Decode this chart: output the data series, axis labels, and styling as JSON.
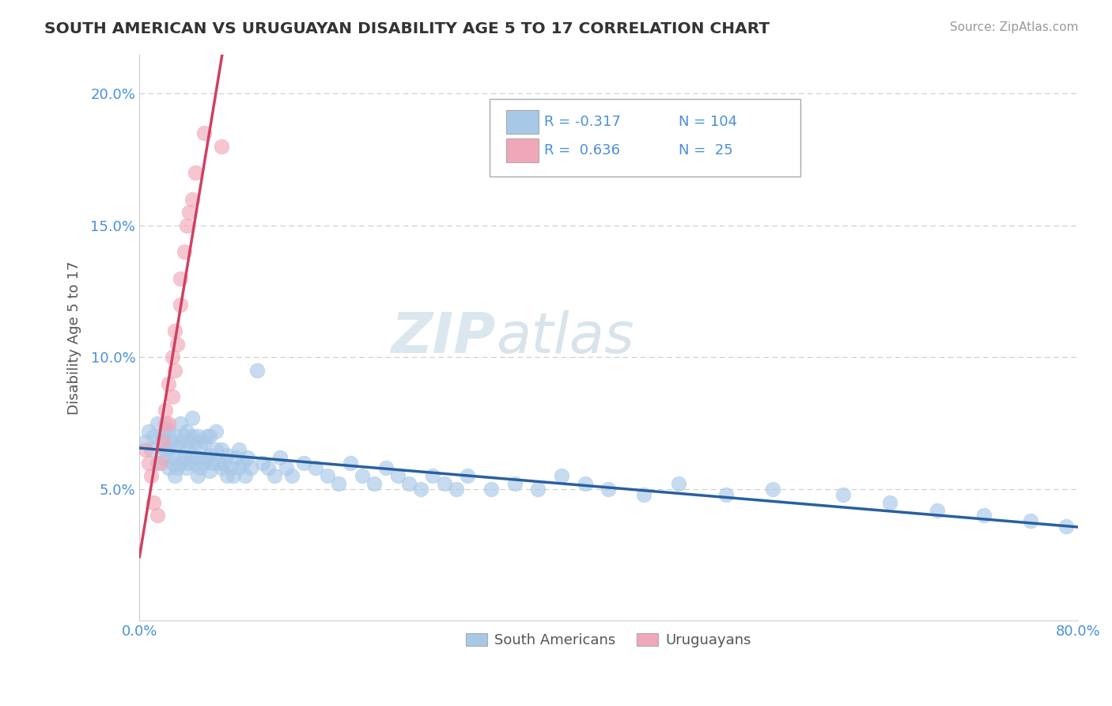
{
  "title": "SOUTH AMERICAN VS URUGUAYAN DISABILITY AGE 5 TO 17 CORRELATION CHART",
  "source": "Source: ZipAtlas.com",
  "ylabel": "Disability Age 5 to 17",
  "xlim": [
    0.0,
    0.8
  ],
  "ylim": [
    0.0,
    0.215
  ],
  "blue_color": "#a8c8e8",
  "pink_color": "#f0a8b8",
  "blue_line_color": "#2860a0",
  "pink_line_color": "#d04060",
  "blue_scatter_x": [
    0.005,
    0.008,
    0.01,
    0.012,
    0.015,
    0.015,
    0.018,
    0.02,
    0.02,
    0.022,
    0.022,
    0.025,
    0.025,
    0.025,
    0.028,
    0.028,
    0.03,
    0.03,
    0.03,
    0.032,
    0.032,
    0.035,
    0.035,
    0.035,
    0.038,
    0.038,
    0.04,
    0.04,
    0.04,
    0.042,
    0.042,
    0.045,
    0.045,
    0.045,
    0.048,
    0.048,
    0.05,
    0.05,
    0.05,
    0.052,
    0.052,
    0.055,
    0.055,
    0.058,
    0.058,
    0.06,
    0.06,
    0.06,
    0.062,
    0.065,
    0.065,
    0.068,
    0.07,
    0.07,
    0.072,
    0.075,
    0.075,
    0.078,
    0.08,
    0.082,
    0.085,
    0.085,
    0.088,
    0.09,
    0.092,
    0.095,
    0.1,
    0.105,
    0.11,
    0.115,
    0.12,
    0.125,
    0.13,
    0.14,
    0.15,
    0.16,
    0.17,
    0.18,
    0.19,
    0.2,
    0.21,
    0.22,
    0.23,
    0.24,
    0.25,
    0.26,
    0.27,
    0.28,
    0.3,
    0.32,
    0.34,
    0.36,
    0.38,
    0.4,
    0.43,
    0.46,
    0.5,
    0.54,
    0.6,
    0.64,
    0.68,
    0.72,
    0.76,
    0.79
  ],
  "blue_scatter_y": [
    0.068,
    0.072,
    0.065,
    0.07,
    0.075,
    0.06,
    0.068,
    0.062,
    0.07,
    0.065,
    0.073,
    0.058,
    0.065,
    0.072,
    0.06,
    0.068,
    0.055,
    0.062,
    0.07,
    0.058,
    0.066,
    0.06,
    0.068,
    0.075,
    0.062,
    0.07,
    0.058,
    0.065,
    0.072,
    0.06,
    0.068,
    0.063,
    0.07,
    0.077,
    0.06,
    0.068,
    0.055,
    0.062,
    0.07,
    0.058,
    0.066,
    0.06,
    0.068,
    0.062,
    0.07,
    0.057,
    0.063,
    0.07,
    0.06,
    0.065,
    0.072,
    0.06,
    0.058,
    0.065,
    0.06,
    0.055,
    0.063,
    0.058,
    0.055,
    0.062,
    0.058,
    0.065,
    0.06,
    0.055,
    0.062,
    0.058,
    0.095,
    0.06,
    0.058,
    0.055,
    0.062,
    0.058,
    0.055,
    0.06,
    0.058,
    0.055,
    0.052,
    0.06,
    0.055,
    0.052,
    0.058,
    0.055,
    0.052,
    0.05,
    0.055,
    0.052,
    0.05,
    0.055,
    0.05,
    0.052,
    0.05,
    0.055,
    0.052,
    0.05,
    0.048,
    0.052,
    0.048,
    0.05,
    0.048,
    0.045,
    0.042,
    0.04,
    0.038,
    0.036
  ],
  "pink_scatter_x": [
    0.005,
    0.008,
    0.01,
    0.012,
    0.015,
    0.018,
    0.02,
    0.022,
    0.022,
    0.025,
    0.025,
    0.028,
    0.028,
    0.03,
    0.03,
    0.032,
    0.035,
    0.035,
    0.038,
    0.04,
    0.042,
    0.045,
    0.048,
    0.055,
    0.07
  ],
  "pink_scatter_y": [
    0.065,
    0.06,
    0.055,
    0.045,
    0.04,
    0.06,
    0.068,
    0.075,
    0.08,
    0.09,
    0.075,
    0.1,
    0.085,
    0.095,
    0.11,
    0.105,
    0.12,
    0.13,
    0.14,
    0.15,
    0.155,
    0.16,
    0.17,
    0.185,
    0.18
  ]
}
